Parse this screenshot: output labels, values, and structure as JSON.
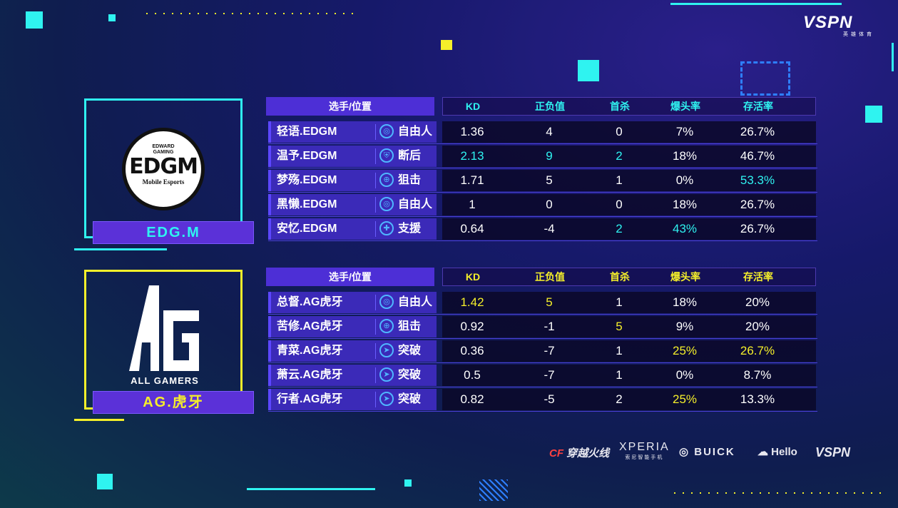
{
  "colors": {
    "edg": "#2ff3f0",
    "ag": "#f5ef2a",
    "header": "#4d2fd6"
  },
  "brand": {
    "vspn": "VSPN",
    "vspn_sub": "英雄体育"
  },
  "columns": {
    "player": "选手/位置",
    "kd": "KD",
    "plusminus": "正负值",
    "firstkill": "首杀",
    "headshot": "爆头率",
    "survival": "存活率"
  },
  "teams": [
    {
      "name": "EDG.M",
      "logo_top": "EDWARD GAMING",
      "logo_main": "EDGM",
      "logo_sub": "Mobile Esports",
      "players": [
        {
          "name": "轻语.EDGM",
          "pos": "自由人",
          "icon": "crosshair-icon",
          "kd": "1.36",
          "pm": "4",
          "fk": "0",
          "hs": "7%",
          "sv": "26.7%",
          "hl": []
        },
        {
          "name": "温予.EDGM",
          "pos": "断后",
          "icon": "shield-icon",
          "kd": "2.13",
          "pm": "9",
          "fk": "2",
          "hs": "18%",
          "sv": "46.7%",
          "hl": [
            "kd",
            "pm",
            "fk"
          ]
        },
        {
          "name": "梦殇.EDGM",
          "pos": "狙击",
          "icon": "scope-icon",
          "kd": "1.71",
          "pm": "5",
          "fk": "1",
          "hs": "0%",
          "sv": "53.3%",
          "hl": [
            "sv"
          ]
        },
        {
          "name": "黑懒.EDGM",
          "pos": "自由人",
          "icon": "crosshair-icon",
          "kd": "1",
          "pm": "0",
          "fk": "0",
          "hs": "18%",
          "sv": "26.7%",
          "hl": []
        },
        {
          "name": "安忆.EDGM",
          "pos": "支援",
          "icon": "support-icon",
          "kd": "0.64",
          "pm": "-4",
          "fk": "2",
          "hs": "43%",
          "sv": "26.7%",
          "hl": [
            "fk",
            "hs"
          ]
        }
      ]
    },
    {
      "name": "AG.虎牙",
      "logo_top": "AG",
      "logo_main": "ALL GAMERS",
      "logo_sub": "",
      "players": [
        {
          "name": "总督.AG虎牙",
          "pos": "自由人",
          "icon": "crosshair-icon",
          "kd": "1.42",
          "pm": "5",
          "fk": "1",
          "hs": "18%",
          "sv": "20%",
          "hl": [
            "kd",
            "pm"
          ]
        },
        {
          "name": "苦修.AG虎牙",
          "pos": "狙击",
          "icon": "scope-icon",
          "kd": "0.92",
          "pm": "-1",
          "fk": "5",
          "hs": "9%",
          "sv": "20%",
          "hl": [
            "fk"
          ]
        },
        {
          "name": "青菜.AG虎牙",
          "pos": "突破",
          "icon": "runner-icon",
          "kd": "0.36",
          "pm": "-7",
          "fk": "1",
          "hs": "25%",
          "sv": "26.7%",
          "hl": [
            "hs",
            "sv"
          ]
        },
        {
          "name": "萧云.AG虎牙",
          "pos": "突破",
          "icon": "runner-icon",
          "kd": "0.5",
          "pm": "-7",
          "fk": "1",
          "hs": "0%",
          "sv": "8.7%",
          "hl": []
        },
        {
          "name": "行者.AG虎牙",
          "pos": "突破",
          "icon": "runner-icon",
          "kd": "0.82",
          "pm": "-5",
          "fk": "2",
          "hs": "25%",
          "sv": "13.3%",
          "hl": [
            "hs"
          ]
        }
      ]
    }
  ],
  "sponsors": {
    "cf": "穿越火线",
    "xperia": "XPERIA",
    "xperia_sub": "索尼智能手机",
    "buick": "BUICK",
    "hello": "Hello",
    "vspn": "VSPN"
  }
}
